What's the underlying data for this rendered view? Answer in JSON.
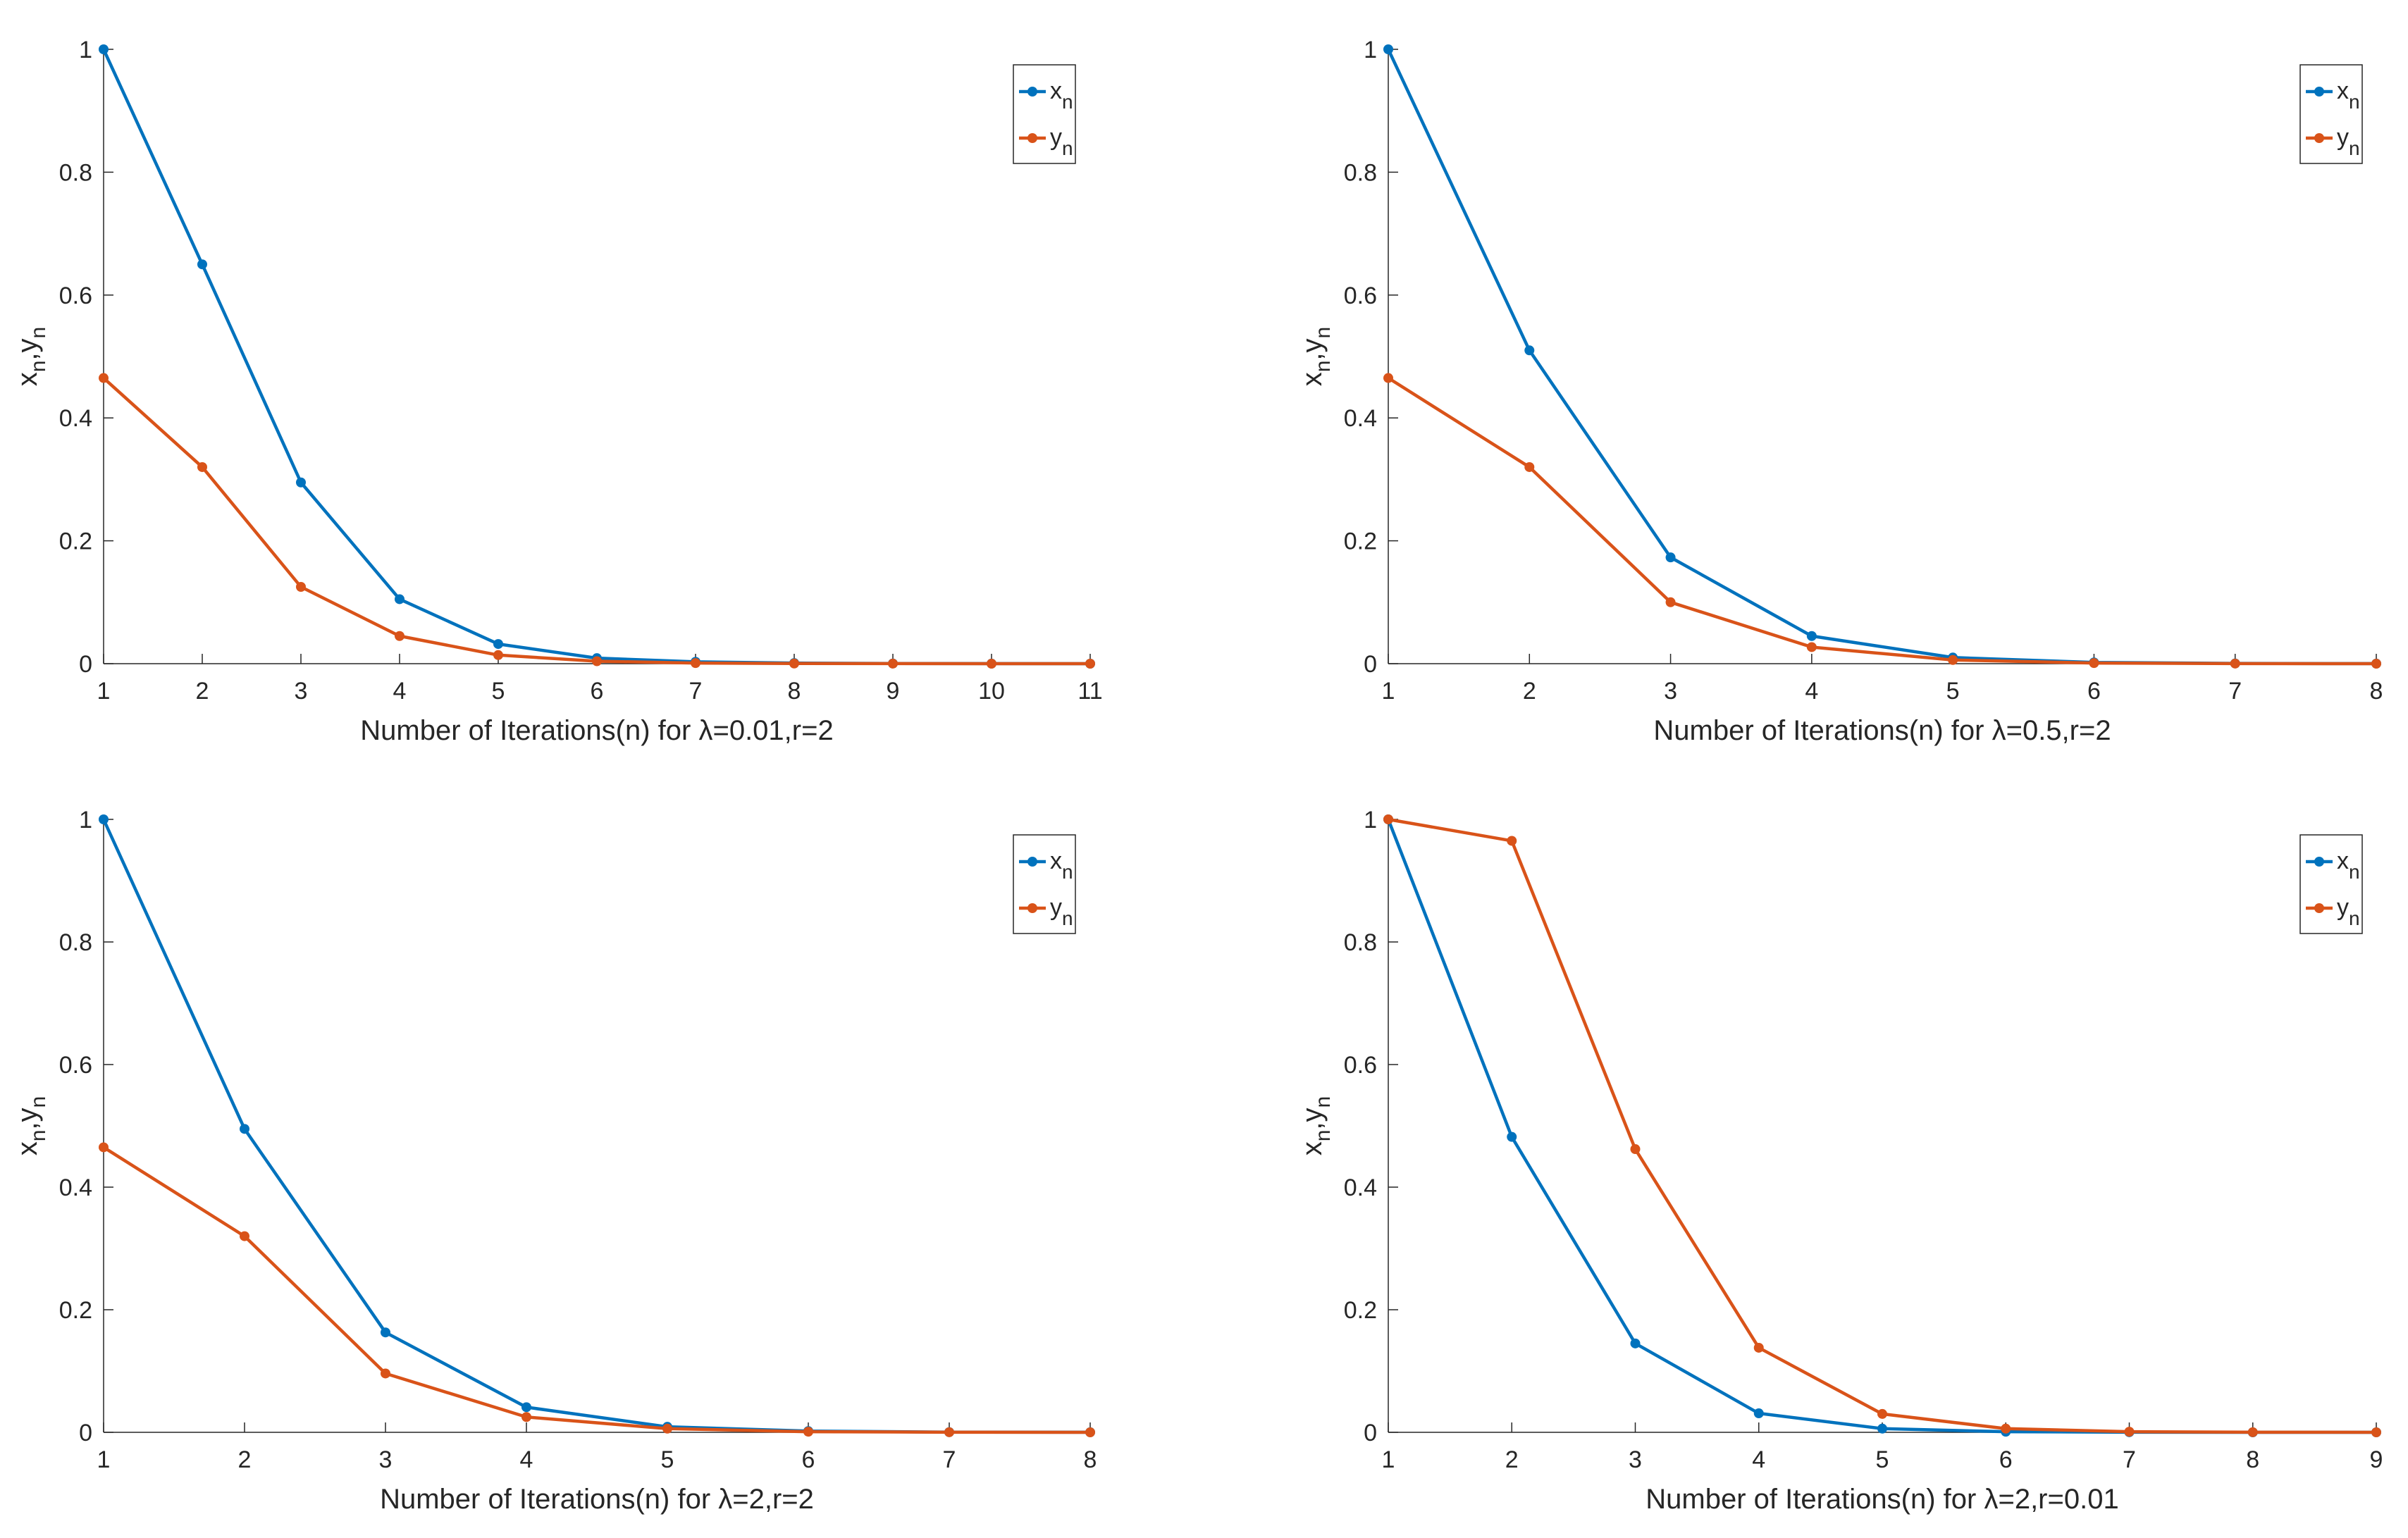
{
  "figure_title": "",
  "chart_data": [
    {
      "type": "line",
      "title": "",
      "x": [
        1,
        2,
        3,
        4,
        5,
        6,
        7,
        8,
        9,
        10,
        11
      ],
      "xlim": [
        1,
        11
      ],
      "xticks": [
        1,
        2,
        3,
        4,
        5,
        6,
        7,
        8,
        9,
        10,
        11
      ],
      "ylim": [
        0,
        1
      ],
      "yticks": [
        0,
        0.2,
        0.4,
        0.6,
        0.8,
        1
      ],
      "xlabel": "Number of Iterations(n) for λ=0.01,r=2",
      "ylabel": "x_n,y_n",
      "ylabel_parts": [
        "x",
        "n",
        ",y",
        "n"
      ],
      "legend_position": "top-right",
      "series": [
        {
          "name": "x_n",
          "base": "x",
          "sub": "n",
          "color": "#0072BD",
          "values": [
            1.0,
            0.65,
            0.295,
            0.105,
            0.032,
            0.009,
            0.003,
            0.001,
            0.0003,
            0.0001,
            0.0
          ]
        },
        {
          "name": "y_n",
          "base": "y",
          "sub": "n",
          "color": "#D95319",
          "values": [
            0.465,
            0.32,
            0.125,
            0.045,
            0.014,
            0.004,
            0.001,
            0.0003,
            0.0001,
            0.0,
            0.0
          ]
        }
      ]
    },
    {
      "type": "line",
      "title": "",
      "x": [
        1,
        2,
        3,
        4,
        5,
        6,
        7,
        8
      ],
      "xlim": [
        1,
        8
      ],
      "xticks": [
        1,
        2,
        3,
        4,
        5,
        6,
        7,
        8
      ],
      "ylim": [
        0,
        1
      ],
      "yticks": [
        0,
        0.2,
        0.4,
        0.6,
        0.8,
        1
      ],
      "xlabel": "Number of Iterations(n) for λ=0.5,r=2",
      "ylabel": "x_n,y_n",
      "ylabel_parts": [
        "x",
        "n",
        ",y",
        "n"
      ],
      "legend_position": "top-right",
      "series": [
        {
          "name": "x_n",
          "base": "x",
          "sub": "n",
          "color": "#0072BD",
          "values": [
            1.0,
            0.51,
            0.173,
            0.045,
            0.01,
            0.002,
            0.0004,
            0.0001
          ]
        },
        {
          "name": "y_n",
          "base": "y",
          "sub": "n",
          "color": "#D95319",
          "values": [
            0.465,
            0.32,
            0.1,
            0.027,
            0.006,
            0.001,
            0.0002,
            0.0
          ]
        }
      ]
    },
    {
      "type": "line",
      "title": "",
      "x": [
        1,
        2,
        3,
        4,
        5,
        6,
        7,
        8
      ],
      "xlim": [
        1,
        8
      ],
      "xticks": [
        1,
        2,
        3,
        4,
        5,
        6,
        7,
        8
      ],
      "ylim": [
        0,
        1
      ],
      "yticks": [
        0,
        0.2,
        0.4,
        0.6,
        0.8,
        1
      ],
      "xlabel": "Number of Iterations(n) for λ=2,r=2",
      "ylabel": "x_n,y_n",
      "ylabel_parts": [
        "x",
        "n",
        ",y",
        "n"
      ],
      "legend_position": "top-right",
      "series": [
        {
          "name": "x_n",
          "base": "x",
          "sub": "n",
          "color": "#0072BD",
          "values": [
            1.0,
            0.495,
            0.163,
            0.041,
            0.009,
            0.002,
            0.0003,
            0.0001
          ]
        },
        {
          "name": "y_n",
          "base": "y",
          "sub": "n",
          "color": "#D95319",
          "values": [
            0.465,
            0.32,
            0.096,
            0.025,
            0.006,
            0.001,
            0.0002,
            0.0
          ]
        }
      ]
    },
    {
      "type": "line",
      "title": "",
      "x": [
        1,
        2,
        3,
        4,
        5,
        6,
        7,
        8,
        9
      ],
      "xlim": [
        1,
        9
      ],
      "xticks": [
        1,
        2,
        3,
        4,
        5,
        6,
        7,
        8,
        9
      ],
      "ylim": [
        0,
        1
      ],
      "yticks": [
        0,
        0.2,
        0.4,
        0.6,
        0.8,
        1
      ],
      "xlabel": "Number of Iterations(n) for λ=2,r=0.01",
      "ylabel": "x_n,y_n",
      "ylabel_parts": [
        "x",
        "n",
        ",y",
        "n"
      ],
      "legend_position": "top-right",
      "series": [
        {
          "name": "x_n",
          "base": "x",
          "sub": "n",
          "color": "#0072BD",
          "values": [
            1.0,
            0.482,
            0.145,
            0.031,
            0.006,
            0.001,
            0.0002,
            0.0,
            0.0
          ]
        },
        {
          "name": "y_n",
          "base": "y",
          "sub": "n",
          "color": "#D95319",
          "values": [
            1.0,
            0.965,
            0.462,
            0.138,
            0.03,
            0.006,
            0.001,
            0.0002,
            0.0
          ]
        }
      ]
    }
  ]
}
